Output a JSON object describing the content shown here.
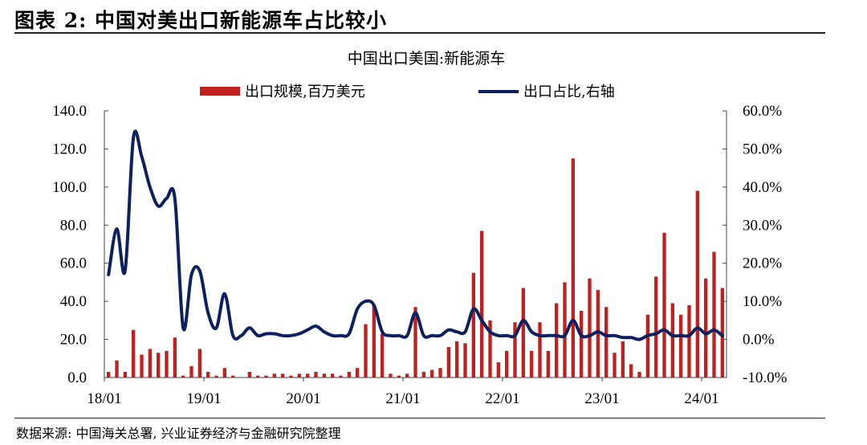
{
  "figure": {
    "title": "图表 2:  中国对美出口新能源车占比较小",
    "source": "数据来源:  中国海关总署, 兴业证券经济与金融研究院整理"
  },
  "chart_data": {
    "type": "bar",
    "title": "中国出口美国:新能源车",
    "bar_color": "#c0201e",
    "line_color": "#0d2060",
    "x": [
      "2018-01",
      "2018-02",
      "2018-03",
      "2018-04",
      "2018-05",
      "2018-06",
      "2018-07",
      "2018-08",
      "2018-09",
      "2018-10",
      "2018-11",
      "2018-12",
      "2019-01",
      "2019-02",
      "2019-03",
      "2019-04",
      "2019-05",
      "2019-06",
      "2019-07",
      "2019-08",
      "2019-09",
      "2019-10",
      "2019-11",
      "2019-12",
      "2020-01",
      "2020-02",
      "2020-03",
      "2020-04",
      "2020-05",
      "2020-06",
      "2020-07",
      "2020-08",
      "2020-09",
      "2020-10",
      "2020-11",
      "2020-12",
      "2021-01",
      "2021-02",
      "2021-03",
      "2021-04",
      "2021-05",
      "2021-06",
      "2021-07",
      "2021-08",
      "2021-09",
      "2021-10",
      "2021-11",
      "2021-12",
      "2022-01",
      "2022-02",
      "2022-03",
      "2022-04",
      "2022-05",
      "2022-06",
      "2022-07",
      "2022-08",
      "2022-09",
      "2022-10",
      "2022-11",
      "2022-12",
      "2023-01",
      "2023-02",
      "2023-03",
      "2023-04",
      "2023-05",
      "2023-06",
      "2023-07",
      "2023-08",
      "2023-09",
      "2023-10",
      "2023-11",
      "2023-12",
      "2024-01",
      "2024-02",
      "2024-03"
    ],
    "xtick_labels": [
      "18/01",
      "19/01",
      "20/01",
      "21/01",
      "22/01",
      "23/01",
      "24/01"
    ],
    "y_left": {
      "ticks": [
        "0.0",
        "20.0",
        "40.0",
        "60.0",
        "80.0",
        "100.0",
        "120.0",
        "140.0"
      ],
      "ylim": [
        0,
        140
      ]
    },
    "y_right": {
      "ticks": [
        "-10.0%",
        "0.0%",
        "10.0%",
        "20.0%",
        "30.0%",
        "40.0%",
        "50.0%",
        "60.0%"
      ],
      "ylim": [
        -10,
        60
      ]
    },
    "series": [
      {
        "name": "出口规模,百万美元",
        "type": "bar",
        "axis": "left",
        "values": [
          3,
          9,
          3,
          25,
          12,
          15,
          13,
          14,
          21,
          1,
          6,
          15,
          3,
          1,
          5,
          1,
          0,
          3,
          1,
          1,
          2,
          2,
          1,
          2,
          2,
          3,
          2,
          2,
          1,
          3,
          5,
          28,
          38,
          23,
          2,
          1,
          2,
          37,
          3,
          4,
          5,
          16,
          19,
          18,
          55,
          77,
          30,
          8,
          14,
          29,
          47,
          14,
          29,
          14,
          39,
          50,
          115,
          35,
          52,
          46,
          37,
          13,
          19,
          7,
          3,
          33,
          53,
          76,
          39,
          33,
          38,
          98,
          52,
          66,
          47
        ]
      },
      {
        "name": "出口占比,右轴",
        "type": "line",
        "axis": "right",
        "values": [
          17,
          29,
          18,
          53,
          48,
          40,
          35,
          37,
          37,
          3,
          17,
          18,
          7,
          3,
          12,
          1,
          1,
          3,
          1,
          1.5,
          1.5,
          1,
          1,
          1.5,
          2.5,
          3.5,
          2,
          1,
          1,
          1.5,
          8,
          10,
          9,
          2,
          1,
          1,
          1,
          7,
          1,
          1,
          1,
          2.5,
          2,
          2,
          8,
          5,
          2,
          1,
          1,
          1,
          5,
          2,
          1,
          1,
          1,
          1,
          5,
          1,
          1,
          2,
          1,
          1,
          0.5,
          0.5,
          0,
          1,
          1.5,
          2.5,
          1,
          1,
          1,
          3,
          1.5,
          2.5,
          1
        ]
      }
    ]
  }
}
